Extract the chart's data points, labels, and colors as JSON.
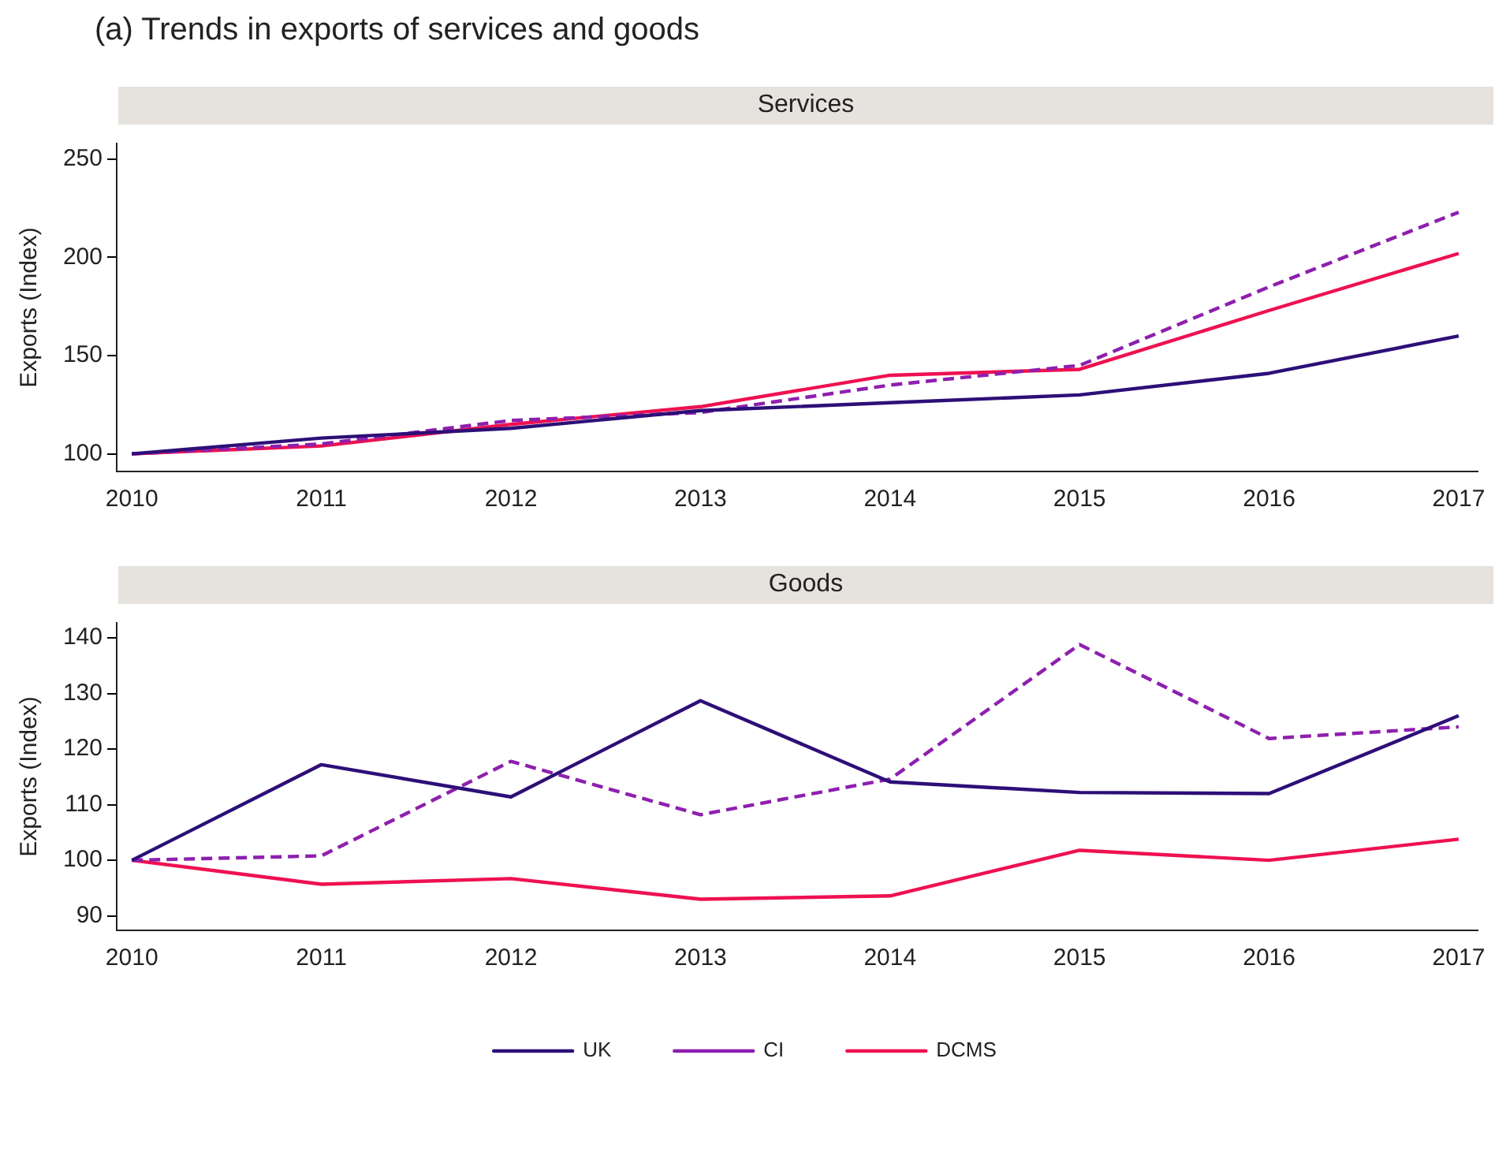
{
  "chart_data": [
    {
      "type": "line",
      "title": "(a) Trends in exports of services and goods",
      "subtitle": "Services",
      "ylabel": "Exports (Index)",
      "x": [
        2010,
        2011,
        2012,
        2013,
        2014,
        2015,
        2016,
        2017
      ],
      "xlim": [
        2009.92,
        2017.1
      ],
      "xticks": [
        2010,
        2011,
        2012,
        2013,
        2014,
        2015,
        2016,
        2017
      ],
      "ylim": [
        91,
        258
      ],
      "yticks": [
        100,
        150,
        200,
        250
      ],
      "grid": false,
      "legend": false,
      "marker": "none",
      "series": [
        {
          "color": "#2d0f78",
          "line_style": "solid",
          "values": [
            100,
            108,
            113,
            122,
            126,
            130,
            141,
            160
          ]
        },
        {
          "color": "#8e1fae",
          "line_style": "dashed",
          "values": [
            100,
            105,
            117,
            121,
            135,
            145,
            185,
            223
          ]
        },
        {
          "color": "#ee1150",
          "line_style": "solid",
          "values": [
            100,
            104,
            115,
            124,
            140,
            143,
            173,
            202
          ]
        }
      ]
    },
    {
      "type": "line",
      "subtitle": "Goods",
      "ylabel": "Exports (Index)",
      "x": [
        2010,
        2011,
        2012,
        2013,
        2014,
        2015,
        2016,
        2017
      ],
      "xlim": [
        2009.92,
        2017.1
      ],
      "xticks": [
        2010,
        2011,
        2012,
        2013,
        2014,
        2015,
        2016,
        2017
      ],
      "ylim": [
        87.4,
        142.7
      ],
      "yticks": [
        90,
        100,
        110,
        120,
        130,
        140
      ],
      "grid": false,
      "legend": "bottom",
      "marker": "none",
      "series": [
        {
          "name": "UK",
          "color": "#2d0f78",
          "line_style": "solid",
          "values": [
            100,
            117.2,
            111.4,
            128.7,
            114.1,
            112.2,
            112,
            126
          ]
        },
        {
          "name": "CI",
          "color": "#8e1fae",
          "line_style": "dashed",
          "values": [
            100,
            100.8,
            117.8,
            108.2,
            114.6,
            138.8,
            121.9,
            124
          ]
        },
        {
          "name": "DCMS",
          "color": "#ee1150",
          "line_style": "solid",
          "values": [
            100,
            95.7,
            96.7,
            93,
            93.6,
            101.8,
            100,
            103.8
          ]
        }
      ]
    }
  ]
}
